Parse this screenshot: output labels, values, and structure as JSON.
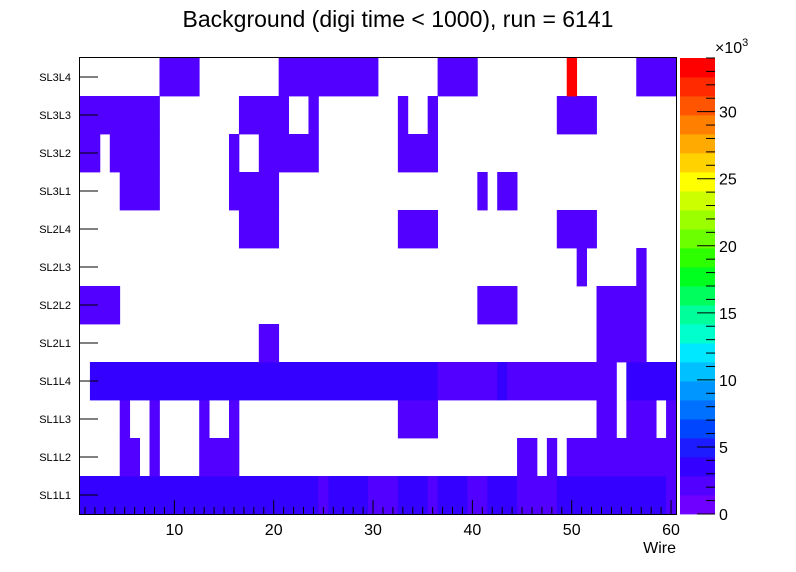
{
  "chart_data": {
    "type": "heatmap",
    "title": "Background (digi time < 1000), run = 6141",
    "xlabel": "Wire",
    "ylabel": "",
    "x_ticks": [
      10,
      20,
      30,
      40,
      50,
      60
    ],
    "x_range": [
      0.5,
      60.5
    ],
    "y_categories": [
      "SL1L1",
      "SL1L2",
      "SL1L3",
      "SL1L4",
      "SL2L1",
      "SL2L2",
      "SL2L3",
      "SL2L4",
      "SL3L1",
      "SL3L2",
      "SL3L3",
      "SL3L4"
    ],
    "z_ticks": [
      0,
      5,
      10,
      15,
      20,
      25,
      30
    ],
    "z_exponent_label": "×10",
    "z_exponent": "3",
    "z_range": [
      0,
      34000
    ],
    "cells": {
      "SL3L4": [
        [
          9,
          12,
          2000
        ],
        [
          21,
          30,
          2000
        ],
        [
          37,
          40,
          2000
        ],
        [
          50,
          50,
          33000
        ],
        [
          57,
          60,
          2000
        ]
      ],
      "SL3L3": [
        [
          1,
          8,
          2000
        ],
        [
          17,
          21,
          2000
        ],
        [
          24,
          24,
          2000
        ],
        [
          33,
          33,
          2000
        ],
        [
          36,
          36,
          2000
        ],
        [
          49,
          52,
          2000
        ]
      ],
      "SL3L2": [
        [
          1,
          2,
          2000
        ],
        [
          4,
          8,
          2000
        ],
        [
          16,
          16,
          2000
        ],
        [
          19,
          24,
          2000
        ],
        [
          33,
          36,
          2000
        ]
      ],
      "SL3L1": [
        [
          5,
          8,
          2000
        ],
        [
          16,
          20,
          2000
        ],
        [
          41,
          41,
          2000
        ],
        [
          43,
          44,
          2000
        ]
      ],
      "SL2L4": [
        [
          17,
          20,
          2000
        ],
        [
          33,
          36,
          2000
        ],
        [
          49,
          52,
          2000
        ]
      ],
      "SL2L3": [
        [
          51,
          51,
          2000
        ],
        [
          57,
          57,
          2000
        ]
      ],
      "SL2L2": [
        [
          1,
          4,
          2000
        ],
        [
          41,
          44,
          2000
        ],
        [
          53,
          57,
          2000
        ]
      ],
      "SL2L1": [
        [
          19,
          20,
          2000
        ],
        [
          53,
          57,
          2000
        ]
      ],
      "SL1L4": [
        [
          2,
          36,
          4200
        ],
        [
          37,
          42,
          2600
        ],
        [
          43,
          43,
          4200
        ],
        [
          44,
          54,
          2600
        ],
        [
          56,
          60,
          4200
        ]
      ],
      "SL1L3": [
        [
          5,
          5,
          2000
        ],
        [
          8,
          8,
          2000
        ],
        [
          13,
          13,
          2000
        ],
        [
          16,
          16,
          2000
        ],
        [
          33,
          36,
          2000
        ],
        [
          53,
          54,
          2000
        ],
        [
          56,
          58,
          2000
        ],
        [
          60,
          60,
          2000
        ]
      ],
      "SL1L2": [
        [
          5,
          6,
          2000
        ],
        [
          8,
          8,
          2000
        ],
        [
          13,
          16,
          2000
        ],
        [
          45,
          46,
          2000
        ],
        [
          48,
          48,
          2000
        ],
        [
          50,
          60,
          2000
        ]
      ],
      "SL1L1": [
        [
          1,
          24,
          4200
        ],
        [
          25,
          25,
          2600
        ],
        [
          26,
          29,
          4200
        ],
        [
          30,
          32,
          2600
        ],
        [
          33,
          35,
          4200
        ],
        [
          36,
          36,
          2600
        ],
        [
          37,
          39,
          4200
        ],
        [
          40,
          41,
          2600
        ],
        [
          42,
          44,
          4200
        ],
        [
          45,
          48,
          2600
        ],
        [
          49,
          59,
          4200
        ],
        [
          60,
          60,
          2600
        ]
      ]
    },
    "palette": [
      "#6f00ff",
      "#5200ff",
      "#3400ff",
      "#1c1cff",
      "#0046ff",
      "#0070ff",
      "#0096ff",
      "#00c0ff",
      "#00e8ff",
      "#00ffcc",
      "#00ff9a",
      "#00ff5c",
      "#00ff1e",
      "#2eff00",
      "#6cff00",
      "#9cff00",
      "#ccff00",
      "#ffff00",
      "#ffd200",
      "#ffaa00",
      "#ff8000",
      "#ff5400",
      "#ff2a00",
      "#ff0000"
    ],
    "legend": "none",
    "grid": false
  }
}
